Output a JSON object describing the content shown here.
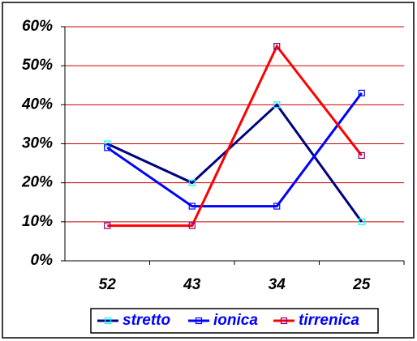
{
  "chart_data": {
    "type": "line",
    "categories": [
      "52",
      "43",
      "34",
      "25"
    ],
    "series": [
      {
        "name": "stretto",
        "color": "#000080",
        "marker_color": "#00ffff",
        "values": [
          30,
          20,
          40,
          10
        ]
      },
      {
        "name": "ionica",
        "color": "#0000ff",
        "marker_color": "#0000ff",
        "values": [
          29,
          14,
          14,
          43
        ]
      },
      {
        "name": "tirrenica",
        "color": "#ff0000",
        "marker_color": "#800080",
        "values": [
          9,
          9,
          55,
          27
        ]
      }
    ],
    "ylim": [
      0,
      60
    ],
    "yticks": [
      {
        "value": 0,
        "label": "0%"
      },
      {
        "value": 10,
        "label": "10%"
      },
      {
        "value": 20,
        "label": "20%"
      },
      {
        "value": 30,
        "label": "30%"
      },
      {
        "value": 40,
        "label": "40%"
      },
      {
        "value": 50,
        "label": "50%"
      },
      {
        "value": 60,
        "label": "60%"
      }
    ],
    "grid": true,
    "grid_color": "#cc0000",
    "legend": "bottom"
  }
}
